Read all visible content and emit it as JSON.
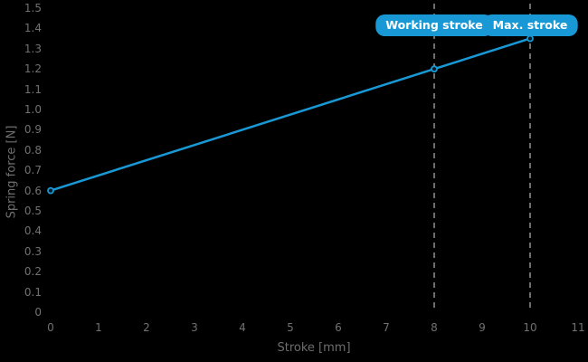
{
  "chart_data": {
    "type": "line",
    "title": "",
    "xlabel": "Stroke [mm]",
    "ylabel": "Spring force [N]",
    "xlim": [
      0,
      11
    ],
    "ylim": [
      0,
      1.5
    ],
    "x_ticks": [
      "0",
      "1",
      "2",
      "3",
      "4",
      "5",
      "6",
      "7",
      "8",
      "9",
      "10",
      "11"
    ],
    "y_ticks": [
      "0",
      "0.1",
      "0.2",
      "0.3",
      "0.4",
      "0.5",
      "0.6",
      "0.7",
      "0.8",
      "0.9",
      "1.0",
      "1.1",
      "1.2",
      "1.3",
      "1.4",
      "1.5"
    ],
    "grid": false,
    "legend": false,
    "series": [
      {
        "name": "Spring force",
        "color": "#1899d6",
        "marker": "circle",
        "points": [
          {
            "x": 0,
            "y": 0.6
          },
          {
            "x": 8,
            "y": 1.2
          },
          {
            "x": 10,
            "y": 1.35
          }
        ]
      }
    ],
    "annotations": [
      {
        "x": 8,
        "label": "Working stroke"
      },
      {
        "x": 10,
        "label": "Max. stroke"
      }
    ],
    "colors": {
      "background": "#000000",
      "text": "#717171",
      "accent": "#1899d6",
      "dashed_line": "#6e6e6e",
      "marker_fill": "#0b1c24",
      "badge_text": "#ffffff"
    }
  }
}
